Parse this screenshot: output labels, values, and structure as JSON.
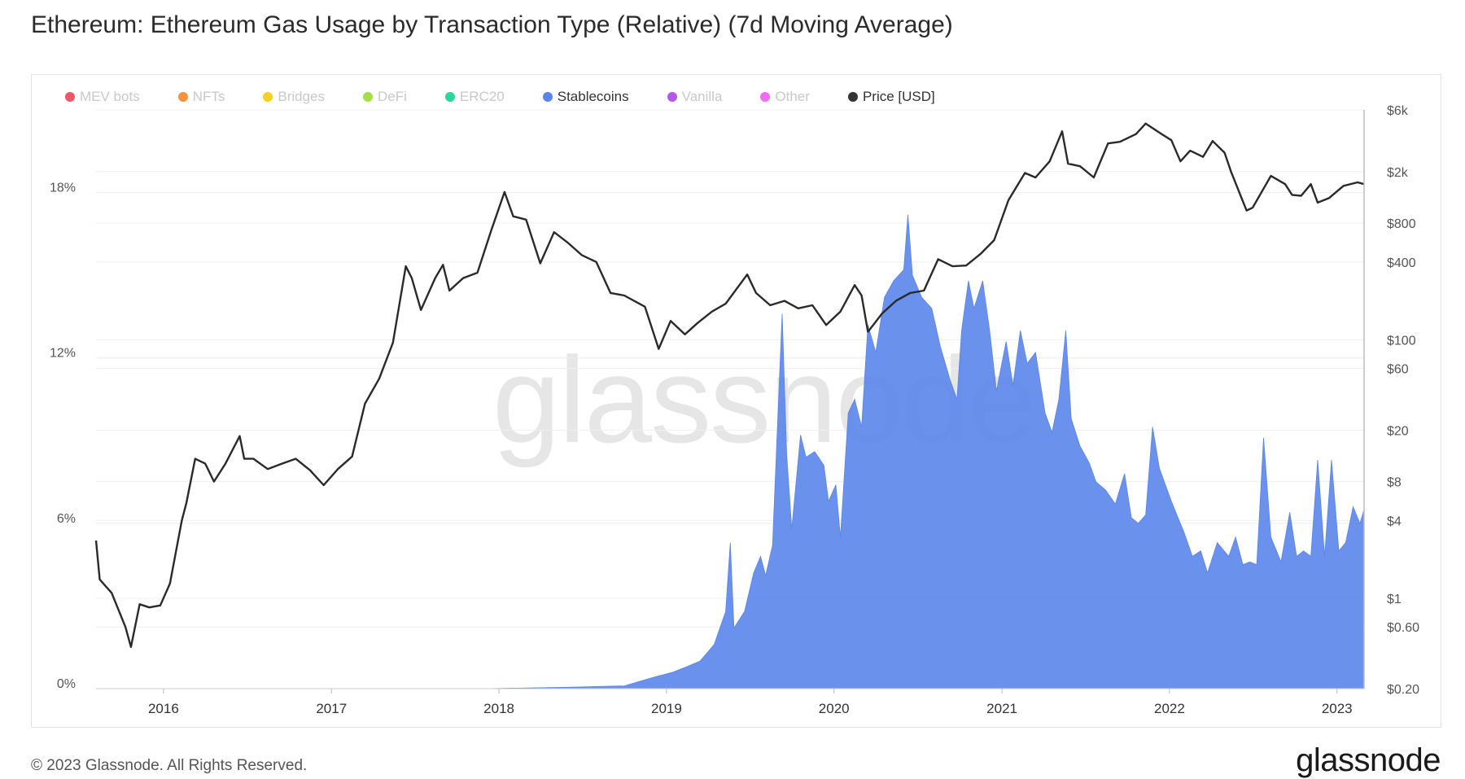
{
  "page": {
    "title": "Ethereum: Ethereum Gas Usage by Transaction Type (Relative) (7d Moving Average)",
    "footer": "© 2023 Glassnode. All Rights Reserved.",
    "brand": "glassnode",
    "watermark": "glassnode"
  },
  "chart_data": {
    "type": "area",
    "title": "Ethereum: Ethereum Gas Usage by Transaction Type (Relative) (7d Moving Average)",
    "legend_position": "top-left",
    "grid": true,
    "legend": [
      {
        "name": "MEV bots",
        "color": "#f0566a",
        "active": false
      },
      {
        "name": "NFTs",
        "color": "#f5923e",
        "active": false
      },
      {
        "name": "Bridges",
        "color": "#f7d11e",
        "active": false
      },
      {
        "name": "DeFi",
        "color": "#a3e048",
        "active": false
      },
      {
        "name": "ERC20",
        "color": "#2bd69a",
        "active": false
      },
      {
        "name": "Stablecoins",
        "color": "#5a85ea",
        "active": true
      },
      {
        "name": "Vanilla",
        "color": "#b558e8",
        "active": false
      },
      {
        "name": "Other",
        "color": "#f06cf0",
        "active": false
      },
      {
        "name": "Price [USD]",
        "color": "#333333",
        "active": true
      }
    ],
    "x_axis": {
      "range": [
        "2015-08-07",
        "2023-03-01"
      ],
      "tick_labels": [
        "2016",
        "2017",
        "2018",
        "2019",
        "2020",
        "2021",
        "2022",
        "2023"
      ],
      "tick_dates": [
        "2016-01-01",
        "2017-01-01",
        "2018-01-01",
        "2019-01-01",
        "2020-01-01",
        "2021-01-01",
        "2022-01-01",
        "2023-01-01"
      ]
    },
    "y_left": {
      "range": [
        0,
        21
      ],
      "tick_values": [
        0,
        6,
        12,
        18
      ],
      "tick_labels": [
        "0%",
        "6%",
        "12%",
        "18%"
      ]
    },
    "y_right": {
      "scale": "log",
      "range": [
        0.2,
        6000
      ],
      "tick_values": [
        0.2,
        0.6,
        1,
        4,
        8,
        20,
        60,
        100,
        400,
        800,
        2000,
        6000
      ],
      "tick_labels": [
        "$0.20",
        "$0.60",
        "$1",
        "$4",
        "$8",
        "$20",
        "$60",
        "$100",
        "$400",
        "$800",
        "$2k",
        "$6k"
      ]
    },
    "series": [
      {
        "name": "Stablecoins",
        "axis": "left",
        "unit": "%",
        "points": [
          [
            "2015-08-07",
            0
          ],
          [
            "2017-12-01",
            0
          ],
          [
            "2018-06-01",
            0.05
          ],
          [
            "2018-10-01",
            0.1
          ],
          [
            "2018-12-01",
            0.4
          ],
          [
            "2019-01-15",
            0.6
          ],
          [
            "2019-02-15",
            0.8
          ],
          [
            "2019-03-15",
            1.0
          ],
          [
            "2019-04-15",
            1.6
          ],
          [
            "2019-05-10",
            2.8
          ],
          [
            "2019-05-20",
            5.3
          ],
          [
            "2019-05-28",
            2.2
          ],
          [
            "2019-06-20",
            2.8
          ],
          [
            "2019-07-10",
            4.2
          ],
          [
            "2019-07-25",
            4.8
          ],
          [
            "2019-08-05",
            4.1
          ],
          [
            "2019-08-20",
            5.2
          ],
          [
            "2019-09-01",
            10.0
          ],
          [
            "2019-09-10",
            13.6
          ],
          [
            "2019-09-20",
            8.5
          ],
          [
            "2019-10-01",
            5.8
          ],
          [
            "2019-10-20",
            9.2
          ],
          [
            "2019-11-01",
            8.4
          ],
          [
            "2019-11-20",
            8.6
          ],
          [
            "2019-12-10",
            8.1
          ],
          [
            "2019-12-20",
            6.8
          ],
          [
            "2020-01-05",
            7.4
          ],
          [
            "2020-01-15",
            5.5
          ],
          [
            "2020-02-01",
            10.0
          ],
          [
            "2020-02-15",
            10.5
          ],
          [
            "2020-03-01",
            9.5
          ],
          [
            "2020-03-15",
            13.2
          ],
          [
            "2020-04-01",
            12.2
          ],
          [
            "2020-04-20",
            14.2
          ],
          [
            "2020-05-10",
            14.8
          ],
          [
            "2020-06-01",
            15.2
          ],
          [
            "2020-06-10",
            17.2
          ],
          [
            "2020-06-20",
            15.0
          ],
          [
            "2020-07-10",
            14.2
          ],
          [
            "2020-08-01",
            13.8
          ],
          [
            "2020-08-20",
            12.4
          ],
          [
            "2020-09-10",
            11.2
          ],
          [
            "2020-09-25",
            10.5
          ],
          [
            "2020-10-05",
            13.0
          ],
          [
            "2020-10-20",
            14.8
          ],
          [
            "2020-11-01",
            13.8
          ],
          [
            "2020-11-20",
            14.8
          ],
          [
            "2020-12-05",
            13.0
          ],
          [
            "2020-12-20",
            10.8
          ],
          [
            "2021-01-10",
            12.6
          ],
          [
            "2021-01-25",
            11.0
          ],
          [
            "2021-02-10",
            13.0
          ],
          [
            "2021-02-25",
            11.8
          ],
          [
            "2021-03-15",
            12.2
          ],
          [
            "2021-04-05",
            10.0
          ],
          [
            "2021-04-20",
            9.3
          ],
          [
            "2021-05-05",
            10.5
          ],
          [
            "2021-05-20",
            13.0
          ],
          [
            "2021-06-01",
            9.8
          ],
          [
            "2021-06-20",
            8.8
          ],
          [
            "2021-07-10",
            8.2
          ],
          [
            "2021-07-25",
            7.5
          ],
          [
            "2021-08-15",
            7.2
          ],
          [
            "2021-09-05",
            6.7
          ],
          [
            "2021-09-25",
            7.8
          ],
          [
            "2021-10-10",
            6.2
          ],
          [
            "2021-10-25",
            6.0
          ],
          [
            "2021-11-10",
            6.3
          ],
          [
            "2021-11-25",
            9.5
          ],
          [
            "2021-12-10",
            8.0
          ],
          [
            "2022-01-05",
            6.8
          ],
          [
            "2022-02-01",
            5.7
          ],
          [
            "2022-02-20",
            4.8
          ],
          [
            "2022-03-10",
            5.0
          ],
          [
            "2022-03-25",
            4.2
          ],
          [
            "2022-04-15",
            5.3
          ],
          [
            "2022-05-10",
            4.8
          ],
          [
            "2022-05-25",
            5.5
          ],
          [
            "2022-06-10",
            4.5
          ],
          [
            "2022-06-25",
            4.6
          ],
          [
            "2022-07-10",
            4.5
          ],
          [
            "2022-07-25",
            9.1
          ],
          [
            "2022-08-10",
            5.5
          ],
          [
            "2022-09-01",
            4.6
          ],
          [
            "2022-09-20",
            6.4
          ],
          [
            "2022-10-05",
            4.8
          ],
          [
            "2022-10-20",
            5.0
          ],
          [
            "2022-11-05",
            4.8
          ],
          [
            "2022-11-20",
            8.3
          ],
          [
            "2022-12-05",
            4.8
          ],
          [
            "2022-12-20",
            8.3
          ],
          [
            "2023-01-05",
            5.0
          ],
          [
            "2023-01-20",
            5.3
          ],
          [
            "2023-02-05",
            6.6
          ],
          [
            "2023-02-20",
            6.0
          ],
          [
            "2023-03-01",
            6.5
          ]
        ]
      },
      {
        "name": "Price [USD]",
        "axis": "right",
        "unit": "USD",
        "points": [
          [
            "2015-08-07",
            2.8
          ],
          [
            "2015-08-15",
            1.4
          ],
          [
            "2015-09-10",
            1.1
          ],
          [
            "2015-10-10",
            0.6
          ],
          [
            "2015-10-22",
            0.42
          ],
          [
            "2015-11-10",
            0.9
          ],
          [
            "2015-12-01",
            0.85
          ],
          [
            "2015-12-25",
            0.88
          ],
          [
            "2016-01-15",
            1.3
          ],
          [
            "2016-02-10",
            4.0
          ],
          [
            "2016-02-20",
            5.5
          ],
          [
            "2016-03-10",
            12.0
          ],
          [
            "2016-04-01",
            11.0
          ],
          [
            "2016-04-20",
            8.0
          ],
          [
            "2016-05-15",
            11.0
          ],
          [
            "2016-06-15",
            18.0
          ],
          [
            "2016-06-25",
            12.0
          ],
          [
            "2016-07-15",
            12.0
          ],
          [
            "2016-08-15",
            10.0
          ],
          [
            "2016-09-15",
            11.0
          ],
          [
            "2016-10-15",
            12.0
          ],
          [
            "2016-11-15",
            9.8
          ],
          [
            "2016-12-15",
            7.5
          ],
          [
            "2017-01-15",
            10.0
          ],
          [
            "2017-02-15",
            12.5
          ],
          [
            "2017-03-15",
            32.0
          ],
          [
            "2017-04-15",
            50.0
          ],
          [
            "2017-05-15",
            95.0
          ],
          [
            "2017-06-12",
            370.0
          ],
          [
            "2017-06-25",
            300.0
          ],
          [
            "2017-07-15",
            170.0
          ],
          [
            "2017-08-15",
            300.0
          ],
          [
            "2017-09-01",
            380.0
          ],
          [
            "2017-09-15",
            240.0
          ],
          [
            "2017-10-15",
            300.0
          ],
          [
            "2017-11-15",
            330.0
          ],
          [
            "2017-12-15",
            700.0
          ],
          [
            "2018-01-13",
            1390.0
          ],
          [
            "2018-02-01",
            900.0
          ],
          [
            "2018-03-01",
            850.0
          ],
          [
            "2018-04-01",
            390.0
          ],
          [
            "2018-05-01",
            680.0
          ],
          [
            "2018-06-01",
            560.0
          ],
          [
            "2018-07-01",
            450.0
          ],
          [
            "2018-08-01",
            400.0
          ],
          [
            "2018-09-01",
            230.0
          ],
          [
            "2018-10-01",
            220.0
          ],
          [
            "2018-11-15",
            180.0
          ],
          [
            "2018-12-15",
            85.0
          ],
          [
            "2019-01-10",
            140.0
          ],
          [
            "2019-02-10",
            110.0
          ],
          [
            "2019-03-10",
            135.0
          ],
          [
            "2019-04-10",
            165.0
          ],
          [
            "2019-05-10",
            190.0
          ],
          [
            "2019-06-26",
            320.0
          ],
          [
            "2019-07-15",
            230.0
          ],
          [
            "2019-08-15",
            185.0
          ],
          [
            "2019-09-15",
            200.0
          ],
          [
            "2019-10-15",
            175.0
          ],
          [
            "2019-11-15",
            185.0
          ],
          [
            "2019-12-15",
            130.0
          ],
          [
            "2020-01-15",
            165.0
          ],
          [
            "2020-02-15",
            265.0
          ],
          [
            "2020-03-01",
            220.0
          ],
          [
            "2020-03-15",
            115.0
          ],
          [
            "2020-04-15",
            160.0
          ],
          [
            "2020-05-15",
            200.0
          ],
          [
            "2020-06-15",
            230.0
          ],
          [
            "2020-07-15",
            240.0
          ],
          [
            "2020-08-15",
            420.0
          ],
          [
            "2020-09-15",
            370.0
          ],
          [
            "2020-10-15",
            375.0
          ],
          [
            "2020-11-15",
            460.0
          ],
          [
            "2020-12-15",
            590.0
          ],
          [
            "2021-01-15",
            1200.0
          ],
          [
            "2021-02-20",
            1950.0
          ],
          [
            "2021-03-15",
            1800.0
          ],
          [
            "2021-04-15",
            2400.0
          ],
          [
            "2021-05-12",
            4100.0
          ],
          [
            "2021-05-25",
            2300.0
          ],
          [
            "2021-06-20",
            2200.0
          ],
          [
            "2021-07-20",
            1800.0
          ],
          [
            "2021-08-20",
            3300.0
          ],
          [
            "2021-09-15",
            3400.0
          ],
          [
            "2021-10-20",
            3900.0
          ],
          [
            "2021-11-10",
            4700.0
          ],
          [
            "2021-12-15",
            3900.0
          ],
          [
            "2022-01-05",
            3500.0
          ],
          [
            "2022-01-25",
            2400.0
          ],
          [
            "2022-02-15",
            2900.0
          ],
          [
            "2022-03-15",
            2600.0
          ],
          [
            "2022-04-05",
            3450.0
          ],
          [
            "2022-05-01",
            2800.0
          ],
          [
            "2022-05-15",
            2000.0
          ],
          [
            "2022-06-18",
            1000.0
          ],
          [
            "2022-07-01",
            1050.0
          ],
          [
            "2022-08-10",
            1850.0
          ],
          [
            "2022-09-10",
            1600.0
          ],
          [
            "2022-09-25",
            1320.0
          ],
          [
            "2022-10-15",
            1300.0
          ],
          [
            "2022-11-05",
            1600.0
          ],
          [
            "2022-11-20",
            1150.0
          ],
          [
            "2022-12-15",
            1250.0
          ],
          [
            "2023-01-15",
            1550.0
          ],
          [
            "2023-02-15",
            1650.0
          ],
          [
            "2023-03-01",
            1600.0
          ]
        ]
      }
    ]
  }
}
